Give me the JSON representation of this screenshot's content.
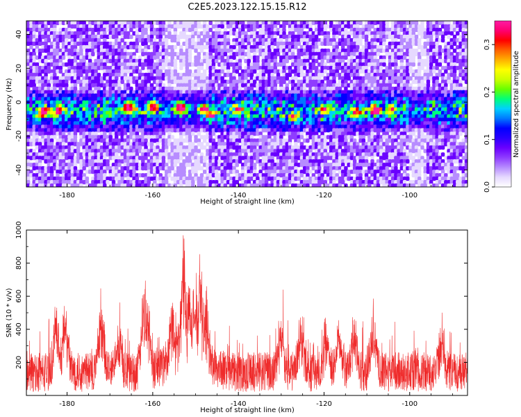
{
  "figure": {
    "title": "C2E5.2023.122.15.15.R12"
  },
  "colors": {
    "snr_line": "#ef2b2b",
    "colormap": [
      "#ffffff",
      "#e6d9ff",
      "#b78cff",
      "#8f3cff",
      "#6a00ff",
      "#2b00ff",
      "#0000ff",
      "#0078ff",
      "#00d0ff",
      "#00ff7a",
      "#66ff00",
      "#ccff00",
      "#ffff00",
      "#ffb000",
      "#ff6000",
      "#ff0000",
      "#ff0070",
      "#ff1aa3"
    ]
  },
  "chart_data": [
    {
      "id": "spectrogram",
      "type": "heatmap",
      "xlabel": "Height of straight line (km)",
      "ylabel": "Frequency (Hz)",
      "xlim": [
        -189.5,
        -86.5
      ],
      "ylim": [
        -50,
        48
      ],
      "xticks": [
        -180,
        -160,
        -140,
        -120,
        -100
      ],
      "yticks": [
        -40,
        -20,
        0,
        20,
        40
      ],
      "colorbar": {
        "label": "Normalized spectral amplitude",
        "range": [
          0.0,
          0.35
        ],
        "ticks": [
          0.0,
          0.1,
          0.2,
          0.3
        ]
      },
      "band": {
        "center_hz": -5,
        "halfwidth_hz": 10
      },
      "hotspots": [
        {
          "x": -185.5,
          "y": -6,
          "value": 0.28
        },
        {
          "x": -182.0,
          "y": -5,
          "value": 0.25
        },
        {
          "x": -165.5,
          "y": -3,
          "value": 0.27
        },
        {
          "x": -160.0,
          "y": -3,
          "value": 0.22
        },
        {
          "x": -153.5,
          "y": -3,
          "value": 0.33
        },
        {
          "x": -148.0,
          "y": -4,
          "value": 0.25
        },
        {
          "x": -146.5,
          "y": -8,
          "value": 0.2
        },
        {
          "x": -140.0,
          "y": -4,
          "value": 0.18
        },
        {
          "x": -127.0,
          "y": -9,
          "value": 0.16
        },
        {
          "x": -120.0,
          "y": -4,
          "value": 0.15
        },
        {
          "x": -112.5,
          "y": -6,
          "value": 0.2
        },
        {
          "x": -108.0,
          "y": -5,
          "value": 0.28
        },
        {
          "x": -104.0,
          "y": -4,
          "value": 0.15
        }
      ]
    },
    {
      "id": "snr",
      "type": "line",
      "xlabel": "Height of straight line (km)",
      "ylabel": "SNR (10 * v/v)",
      "xlim": [
        -189.5,
        -86.5
      ],
      "ylim": [
        0,
        1000
      ],
      "xticks": [
        -180,
        -160,
        -140,
        -120,
        -100
      ],
      "yticks": [
        200,
        400,
        600,
        800,
        1000
      ],
      "baseline": 150,
      "peaks": [
        {
          "x": -180.5,
          "y": 540
        },
        {
          "x": -182.5,
          "y": 500
        },
        {
          "x": -172.0,
          "y": 470
        },
        {
          "x": -168.0,
          "y": 420
        },
        {
          "x": -162.0,
          "y": 690
        },
        {
          "x": -161.3,
          "y": 640
        },
        {
          "x": -155.5,
          "y": 550
        },
        {
          "x": -152.8,
          "y": 1000
        },
        {
          "x": -151.5,
          "y": 710
        },
        {
          "x": -150.2,
          "y": 620
        },
        {
          "x": -149.0,
          "y": 840
        },
        {
          "x": -147.5,
          "y": 560
        },
        {
          "x": -130.0,
          "y": 460
        },
        {
          "x": -125.5,
          "y": 400
        },
        {
          "x": -119.5,
          "y": 440
        },
        {
          "x": -116.5,
          "y": 450
        },
        {
          "x": -113.0,
          "y": 420
        },
        {
          "x": -108.5,
          "y": 440
        },
        {
          "x": -92.5,
          "y": 410
        }
      ]
    }
  ]
}
